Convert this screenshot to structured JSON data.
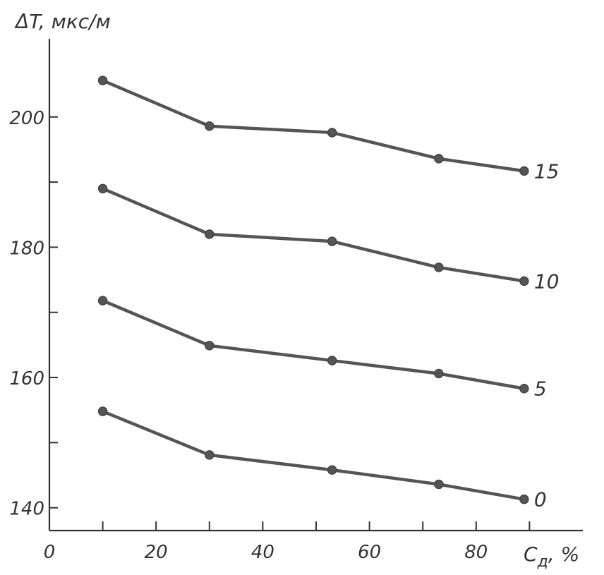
{
  "chart_data": {
    "type": "line",
    "ylabel": "ΔT, мкс/м",
    "xlabel_main": "C",
    "xlabel_sub": "д",
    "xlabel_unit": ", %",
    "xlim": [
      0,
      100
    ],
    "ylim": [
      136.5,
      212
    ],
    "x_ticks_labeled": [
      0,
      20,
      40,
      60,
      80
    ],
    "x_ticks_minor": [
      10,
      30,
      50,
      70,
      90
    ],
    "y_ticks_labeled": [
      140,
      160,
      180,
      200
    ],
    "y_ticks_minor": [
      150,
      170,
      190
    ],
    "grid": false,
    "series": [
      {
        "name": "15",
        "x": [
          10,
          30,
          53,
          73,
          89
        ],
        "y": [
          205.6,
          198.6,
          197.6,
          193.6,
          191.7
        ]
      },
      {
        "name": "10",
        "x": [
          10,
          30,
          53,
          73,
          89
        ],
        "y": [
          189.0,
          182.0,
          180.9,
          176.9,
          174.8
        ]
      },
      {
        "name": "5",
        "x": [
          10,
          30,
          53,
          73,
          89
        ],
        "y": [
          171.8,
          164.9,
          162.6,
          160.6,
          158.3
        ]
      },
      {
        "name": "0",
        "x": [
          10,
          30,
          53,
          73,
          89
        ],
        "y": [
          154.8,
          148.1,
          145.8,
          143.6,
          141.3
        ]
      }
    ]
  }
}
